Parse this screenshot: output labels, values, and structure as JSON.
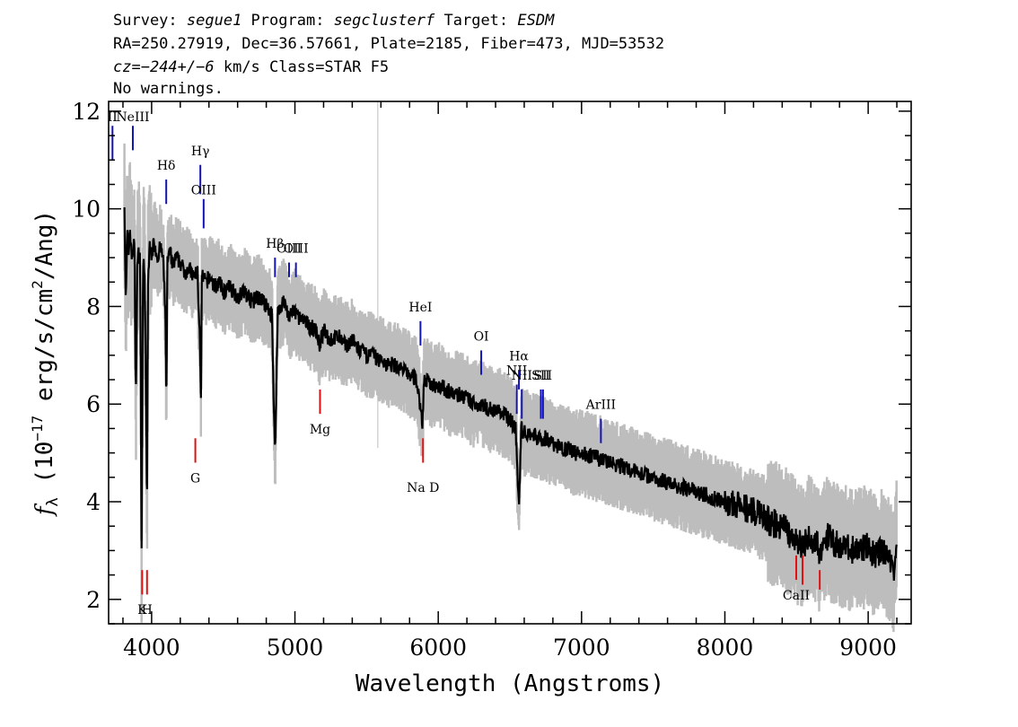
{
  "header": {
    "line1": [
      {
        "text": "Survey: ",
        "italic": false
      },
      {
        "text": "segue1",
        "italic": true
      },
      {
        "text": " Program: ",
        "italic": false
      },
      {
        "text": "segclusterf",
        "italic": true
      },
      {
        "text": " Target: ",
        "italic": false
      },
      {
        "text": "ESDM",
        "italic": true
      }
    ],
    "line2": "RA=250.27919, Dec=36.57661, Plate=2185, Fiber=473, MJD=53532",
    "line3": [
      {
        "text": "cz=",
        "italic": true
      },
      {
        "text": "−244+/−6",
        "italic": true
      },
      {
        "text": " km/s Class=STAR F5",
        "italic": false
      }
    ],
    "line4": "No warnings."
  },
  "chart_data": {
    "type": "line",
    "xlabel": "Wavelength (Angstroms)",
    "ylabel": {
      "prefix": "f",
      "subscript": "λ",
      "text": "(10",
      "exponent": "−17",
      "rest": " erg/s/cm",
      "exp2": "2",
      "tail": "/Ang)"
    },
    "xlim": [
      3700,
      9300
    ],
    "ylim": [
      1.5,
      12.2
    ],
    "xticks": [
      4000,
      5000,
      6000,
      7000,
      8000,
      9000
    ],
    "yticks": [
      2,
      4,
      6,
      8,
      10,
      12
    ],
    "colors": {
      "flux": "#000000",
      "noise": "#bdbdbd",
      "emission": "#1414b4",
      "absorption": "#e01010",
      "sky": "#c8c8c8"
    },
    "sky_line_x": 5578,
    "series": [
      {
        "name": "flux",
        "x": [
          3810,
          3820,
          3830,
          3840,
          3850,
          3860,
          3870,
          3880,
          3890,
          3900,
          3910,
          3920,
          3930,
          3935,
          3940,
          3950,
          3960,
          3968,
          3975,
          3985,
          4000,
          4020,
          4040,
          4060,
          4080,
          4100,
          4102,
          4110,
          4130,
          4150,
          4170,
          4200,
          4230,
          4260,
          4290,
          4320,
          4340,
          4345,
          4350,
          4380,
          4410,
          4440,
          4470,
          4500,
          4550,
          4600,
          4650,
          4700,
          4750,
          4800,
          4840,
          4861,
          4880,
          4920,
          4960,
          5000,
          5050,
          5100,
          5150,
          5170,
          5200,
          5250,
          5300,
          5350,
          5400,
          5450,
          5500,
          5550,
          5580,
          5600,
          5650,
          5700,
          5750,
          5800,
          5850,
          5890,
          5900,
          5950,
          6000,
          6050,
          6100,
          6150,
          6200,
          6250,
          6300,
          6350,
          6400,
          6450,
          6500,
          6540,
          6563,
          6580,
          6600,
          6650,
          6700,
          6750,
          6800,
          6850,
          6900,
          6950,
          7000,
          7100,
          7200,
          7300,
          7400,
          7500,
          7600,
          7700,
          7800,
          7900,
          8000,
          8100,
          8200,
          8300,
          8400,
          8498,
          8542,
          8600,
          8662,
          8700,
          8800,
          8900,
          9000,
          9050,
          9100,
          9150,
          9180,
          9200
        ],
        "y": [
          10.2,
          8.0,
          9.5,
          9.1,
          9.6,
          9.0,
          9.2,
          9.3,
          6.0,
          8.8,
          9.1,
          9.0,
          3.0,
          5.5,
          9.0,
          8.8,
          6.5,
          3.5,
          8.5,
          9.2,
          9.1,
          9.3,
          9.0,
          9.2,
          9.0,
          7.5,
          5.5,
          8.9,
          9.1,
          8.8,
          9.0,
          8.9,
          8.7,
          8.8,
          8.6,
          8.7,
          7.0,
          5.8,
          8.6,
          8.5,
          8.6,
          8.4,
          8.5,
          8.3,
          8.4,
          8.2,
          8.3,
          8.1,
          8.2,
          8.0,
          7.8,
          4.9,
          7.9,
          8.1,
          7.8,
          7.9,
          7.7,
          7.6,
          7.5,
          7.2,
          7.5,
          7.3,
          7.4,
          7.2,
          7.3,
          7.1,
          7.0,
          7.0,
          6.9,
          6.9,
          6.8,
          6.8,
          6.7,
          6.6,
          6.5,
          5.6,
          6.5,
          6.4,
          6.4,
          6.3,
          6.2,
          6.2,
          6.1,
          6.0,
          6.0,
          5.9,
          5.9,
          5.8,
          5.7,
          5.5,
          3.9,
          5.5,
          5.4,
          5.4,
          5.3,
          5.3,
          5.2,
          5.1,
          5.1,
          5.0,
          5.0,
          4.9,
          4.8,
          4.7,
          4.6,
          4.5,
          4.4,
          4.3,
          4.2,
          4.1,
          4.0,
          3.9,
          3.8,
          3.6,
          3.5,
          3.2,
          3.1,
          3.3,
          3.0,
          3.3,
          3.1,
          3.0,
          3.1,
          2.9,
          3.0,
          2.8,
          2.6,
          3.4
        ]
      }
    ],
    "emission_lines": [
      {
        "label": "II",
        "x": 3727,
        "y_top": 11.7,
        "y_bottom": 11.0,
        "label_y": 11.8
      },
      {
        "label": "NeIII",
        "x": 3869,
        "y_top": 11.7,
        "y_bottom": 11.2,
        "label_y": 11.8
      },
      {
        "label": "Hδ",
        "x": 4102,
        "y_top": 10.6,
        "y_bottom": 10.1,
        "label_y": 10.8
      },
      {
        "label": "Hγ",
        "x": 4340,
        "y_top": 10.9,
        "y_bottom": 10.3,
        "label_y": 11.1
      },
      {
        "label": "OIII",
        "x": 4363,
        "y_top": 10.2,
        "y_bottom": 9.6,
        "label_y": 10.3
      },
      {
        "label": "Hβ",
        "x": 4861,
        "y_top": 9.0,
        "y_bottom": 8.6,
        "label_y": 9.2
      },
      {
        "label": "OIII",
        "x": 4959,
        "y_top": 8.9,
        "y_bottom": 8.6,
        "label_y": 9.1
      },
      {
        "label": "OIII",
        "x": 5007,
        "y_top": 8.9,
        "y_bottom": 8.6,
        "label_y": 9.1
      },
      {
        "label": "HeI",
        "x": 5876,
        "y_top": 7.7,
        "y_bottom": 7.2,
        "label_y": 7.9
      },
      {
        "label": "OI",
        "x": 6300,
        "y_top": 7.1,
        "y_bottom": 6.6,
        "label_y": 7.3
      },
      {
        "label": "NII",
        "x": 6548,
        "y_top": 6.4,
        "y_bottom": 5.8,
        "label_y": 6.6
      },
      {
        "label": "Hα",
        "x": 6563,
        "y_top": 6.7,
        "y_bottom": 6.3,
        "label_y": 6.9
      },
      {
        "label": "NII",
        "x": 6583,
        "y_top": 6.3,
        "y_bottom": 5.7,
        "label_y": 6.5
      },
      {
        "label": "SII",
        "x": 6716,
        "y_top": 6.3,
        "y_bottom": 5.7,
        "label_y": 6.5
      },
      {
        "label": "SII",
        "x": 6731,
        "y_top": 6.3,
        "y_bottom": 5.7,
        "label_y": 6.5
      },
      {
        "label": "ArIII",
        "x": 7135,
        "y_top": 5.7,
        "y_bottom": 5.2,
        "label_y": 5.9
      }
    ],
    "absorption_lines": [
      {
        "label": "G",
        "x": 4305,
        "y_top": 5.3,
        "y_bottom": 4.8,
        "label_y": 4.4
      },
      {
        "label": "Mg",
        "x": 5175,
        "y_top": 6.3,
        "y_bottom": 5.8,
        "label_y": 5.4
      },
      {
        "label": "Na D",
        "x": 5894,
        "y_top": 5.3,
        "y_bottom": 4.8,
        "label_y": 4.2
      },
      {
        "label": "K",
        "x": 3934,
        "y_top": 2.6,
        "y_bottom": 2.1,
        "label_y": 1.7
      },
      {
        "label": "H",
        "x": 3968,
        "y_top": 2.6,
        "y_bottom": 2.1,
        "label_y": 1.7
      },
      {
        "label": "CaII",
        "x": 8498,
        "y_top": 2.9,
        "y_bottom": 2.4,
        "label_y": 2.0
      },
      {
        "label": "",
        "x": 8542,
        "y_top": 2.9,
        "y_bottom": 2.3,
        "label_y": 2.0
      },
      {
        "label": "",
        "x": 8662,
        "y_top": 2.6,
        "y_bottom": 2.2,
        "label_y": 2.0
      }
    ]
  }
}
